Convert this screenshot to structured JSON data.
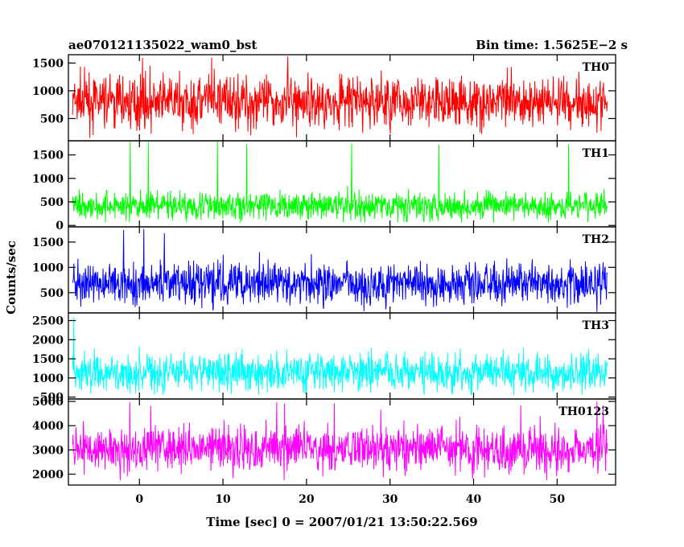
{
  "chart_data": {
    "type": "line",
    "title_left": "ae070121135022_wam0_bst",
    "title_right": "Bin time: 1.5625E−2 s",
    "xlabel": "Time [sec] 0 = 2007/01/21 13:50:22.569",
    "ylabel": "Counts/sec",
    "xlim": [
      -8.5,
      57
    ],
    "x_span": [
      -8,
      56
    ],
    "x_ticks": [
      0,
      10,
      20,
      30,
      40,
      50
    ],
    "x_tick_labels": [
      "0",
      "10",
      "20",
      "30",
      "40",
      "50"
    ],
    "grid": false,
    "panels": [
      {
        "name": "TH0",
        "color": "#ff0000",
        "ylim": [
          100,
          1650
        ],
        "ticks": [
          500,
          1000,
          1500
        ],
        "tick_labels": [
          "500",
          "1000",
          "1500"
        ],
        "mean": 800,
        "spread": 330,
        "min": 150,
        "peak": 1650
      },
      {
        "name": "TH1",
        "color": "#00ff00",
        "ylim": [
          -30,
          1800
        ],
        "ticks": [
          0,
          500,
          1000,
          1500
        ],
        "tick_labels": [
          "0",
          "500",
          "1000",
          "1500"
        ],
        "mean": 420,
        "spread": 210,
        "min": 60,
        "peak": 1800
      },
      {
        "name": "TH2",
        "color": "#0000ff",
        "ylim": [
          100,
          1800
        ],
        "ticks": [
          500,
          1000,
          1500
        ],
        "tick_labels": [
          "500",
          "1000",
          "1500"
        ],
        "mean": 680,
        "spread": 290,
        "min": 120,
        "peak": 1800
      },
      {
        "name": "TH3",
        "color": "#00ffff",
        "ylim": [
          450,
          2700
        ],
        "ticks": [
          500,
          1000,
          1500,
          2000,
          2500
        ],
        "tick_labels": [
          "500",
          "1000",
          "1500",
          "2000",
          "2500"
        ],
        "mean": 1150,
        "spread": 360,
        "min": 560,
        "peak": 2650
      },
      {
        "name": "TH0123",
        "color": "#ff00ff",
        "ylim": [
          1550,
          5100
        ],
        "ticks": [
          2000,
          3000,
          4000,
          5000
        ],
        "tick_labels": [
          "2000",
          "3000",
          "4000",
          "5000"
        ],
        "mean": 3050,
        "spread": 640,
        "min": 1750,
        "peak": 5000
      }
    ]
  }
}
